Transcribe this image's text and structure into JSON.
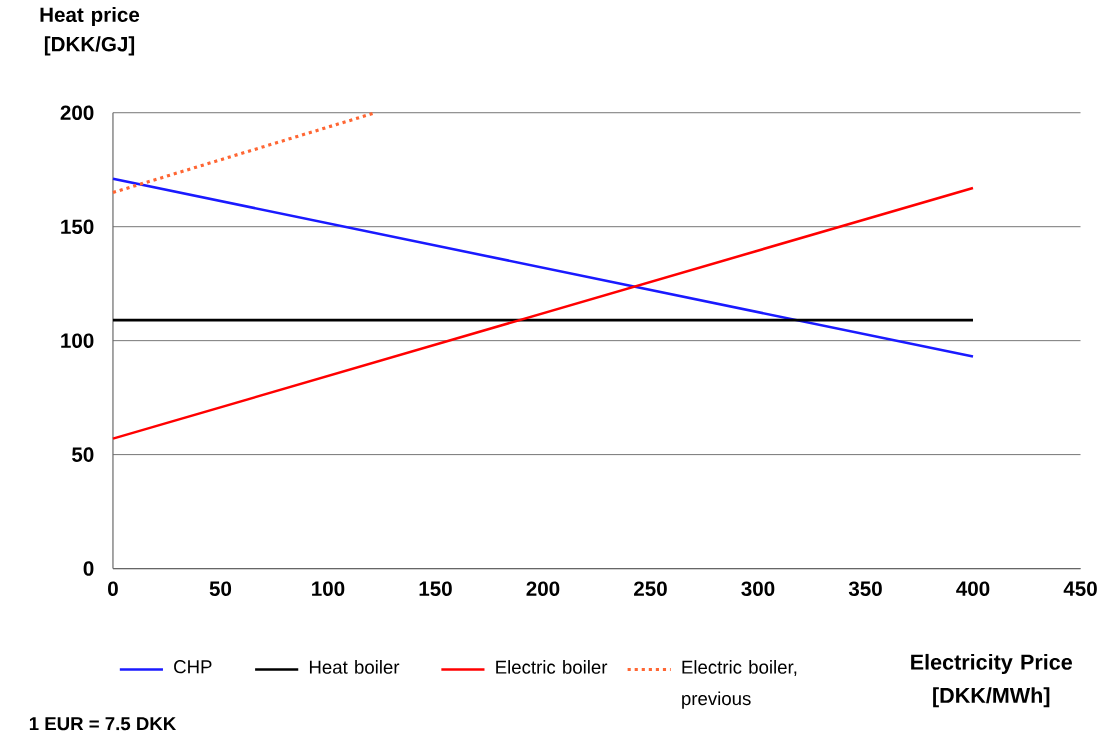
{
  "chart_data": {
    "type": "line",
    "xlabel": "Electricity Price [DKK/MWh]",
    "ylabel": "Heat price [DKK/GJ]",
    "annotations": [
      "1 EUR = 7.5 DKK"
    ],
    "xlim": [
      0,
      450
    ],
    "xticks": [
      0,
      50,
      100,
      150,
      200,
      250,
      300,
      350,
      400,
      450
    ],
    "ylim": [
      0,
      200
    ],
    "yticks": [
      0,
      50,
      100,
      150,
      200
    ],
    "grid": "y",
    "legend": "bottom",
    "marker": "none",
    "line_style": "solid",
    "series": [
      {
        "name": "CHP",
        "color": "#1a1aff",
        "x": [
          0,
          400
        ],
        "values": [
          171,
          93
        ]
      },
      {
        "name": "Heat boiler",
        "color": "#000000",
        "x": [
          0,
          400
        ],
        "values": [
          109,
          109
        ]
      },
      {
        "name": "Electric boiler",
        "color": "#ff0000",
        "x": [
          0,
          400
        ],
        "values": [
          57,
          167
        ]
      },
      {
        "name": "Electric boiler, previous",
        "color": "#ff6633",
        "x": [
          0,
          122
        ],
        "values": [
          165,
          200
        ],
        "line_style": "dotted"
      }
    ]
  }
}
